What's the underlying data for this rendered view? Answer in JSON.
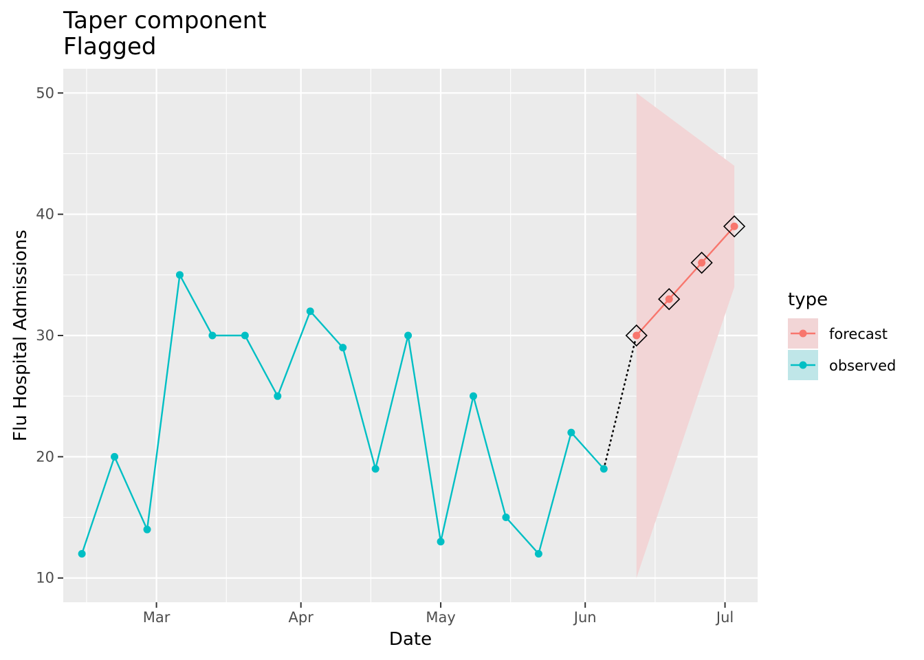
{
  "chart_data": {
    "type": "line",
    "title_lines": [
      "Taper component",
      "Flagged"
    ],
    "xlabel": "Date",
    "ylabel": "Flu Hospital Admissions",
    "x_ticks": [
      {
        "label": "Mar",
        "date": "2024-03-01"
      },
      {
        "label": "Apr",
        "date": "2024-04-01"
      },
      {
        "label": "May",
        "date": "2024-05-01"
      },
      {
        "label": "Jun",
        "date": "2024-06-01"
      },
      {
        "label": "Jul",
        "date": "2024-07-01"
      }
    ],
    "x_minor_dates": [
      "2024-02-15",
      "2024-03-16",
      "2024-04-16",
      "2024-05-16",
      "2024-06-16"
    ],
    "xlim": [
      "2024-02-10",
      "2024-07-08"
    ],
    "ylim": [
      8,
      52
    ],
    "y_ticks": [
      10,
      20,
      30,
      40,
      50
    ],
    "y_minor": [
      15,
      25,
      35,
      45
    ],
    "legend": {
      "title": "type",
      "position": "right",
      "entries": [
        {
          "label": "forecast",
          "color": "#F8766D",
          "fill": "#F2D5D6"
        },
        {
          "label": "observed",
          "color": "#00BFC4",
          "fill": "#BFE6E8"
        }
      ]
    },
    "series": [
      {
        "name": "observed",
        "color": "#00BFC4",
        "points": [
          [
            "2024-02-14",
            12
          ],
          [
            "2024-02-21",
            20
          ],
          [
            "2024-02-28",
            14
          ],
          [
            "2024-03-06",
            35
          ],
          [
            "2024-03-13",
            30
          ],
          [
            "2024-03-20",
            30
          ],
          [
            "2024-03-27",
            25
          ],
          [
            "2024-04-03",
            32
          ],
          [
            "2024-04-10",
            29
          ],
          [
            "2024-04-17",
            19
          ],
          [
            "2024-04-24",
            30
          ],
          [
            "2024-05-01",
            13
          ],
          [
            "2024-05-08",
            25
          ],
          [
            "2024-05-15",
            15
          ],
          [
            "2024-05-22",
            12
          ],
          [
            "2024-05-29",
            22
          ],
          [
            "2024-06-05",
            19
          ]
        ]
      },
      {
        "name": "forecast",
        "color": "#F8766D",
        "points": [
          [
            "2024-06-12",
            30
          ],
          [
            "2024-06-19",
            33
          ],
          [
            "2024-06-26",
            36
          ],
          [
            "2024-07-03",
            39
          ]
        ],
        "flagged": true,
        "interval": [
          {
            "date": "2024-06-12",
            "lower": 10,
            "upper": 50
          },
          {
            "date": "2024-07-03",
            "lower": 34,
            "upper": 44
          }
        ]
      }
    ],
    "connector": {
      "from": [
        "2024-06-05",
        19
      ],
      "to": [
        "2024-06-12",
        30
      ],
      "style": "dotted"
    },
    "grid": true,
    "panel_background": "#EBEBEB",
    "grid_color": "#FFFFFF"
  }
}
